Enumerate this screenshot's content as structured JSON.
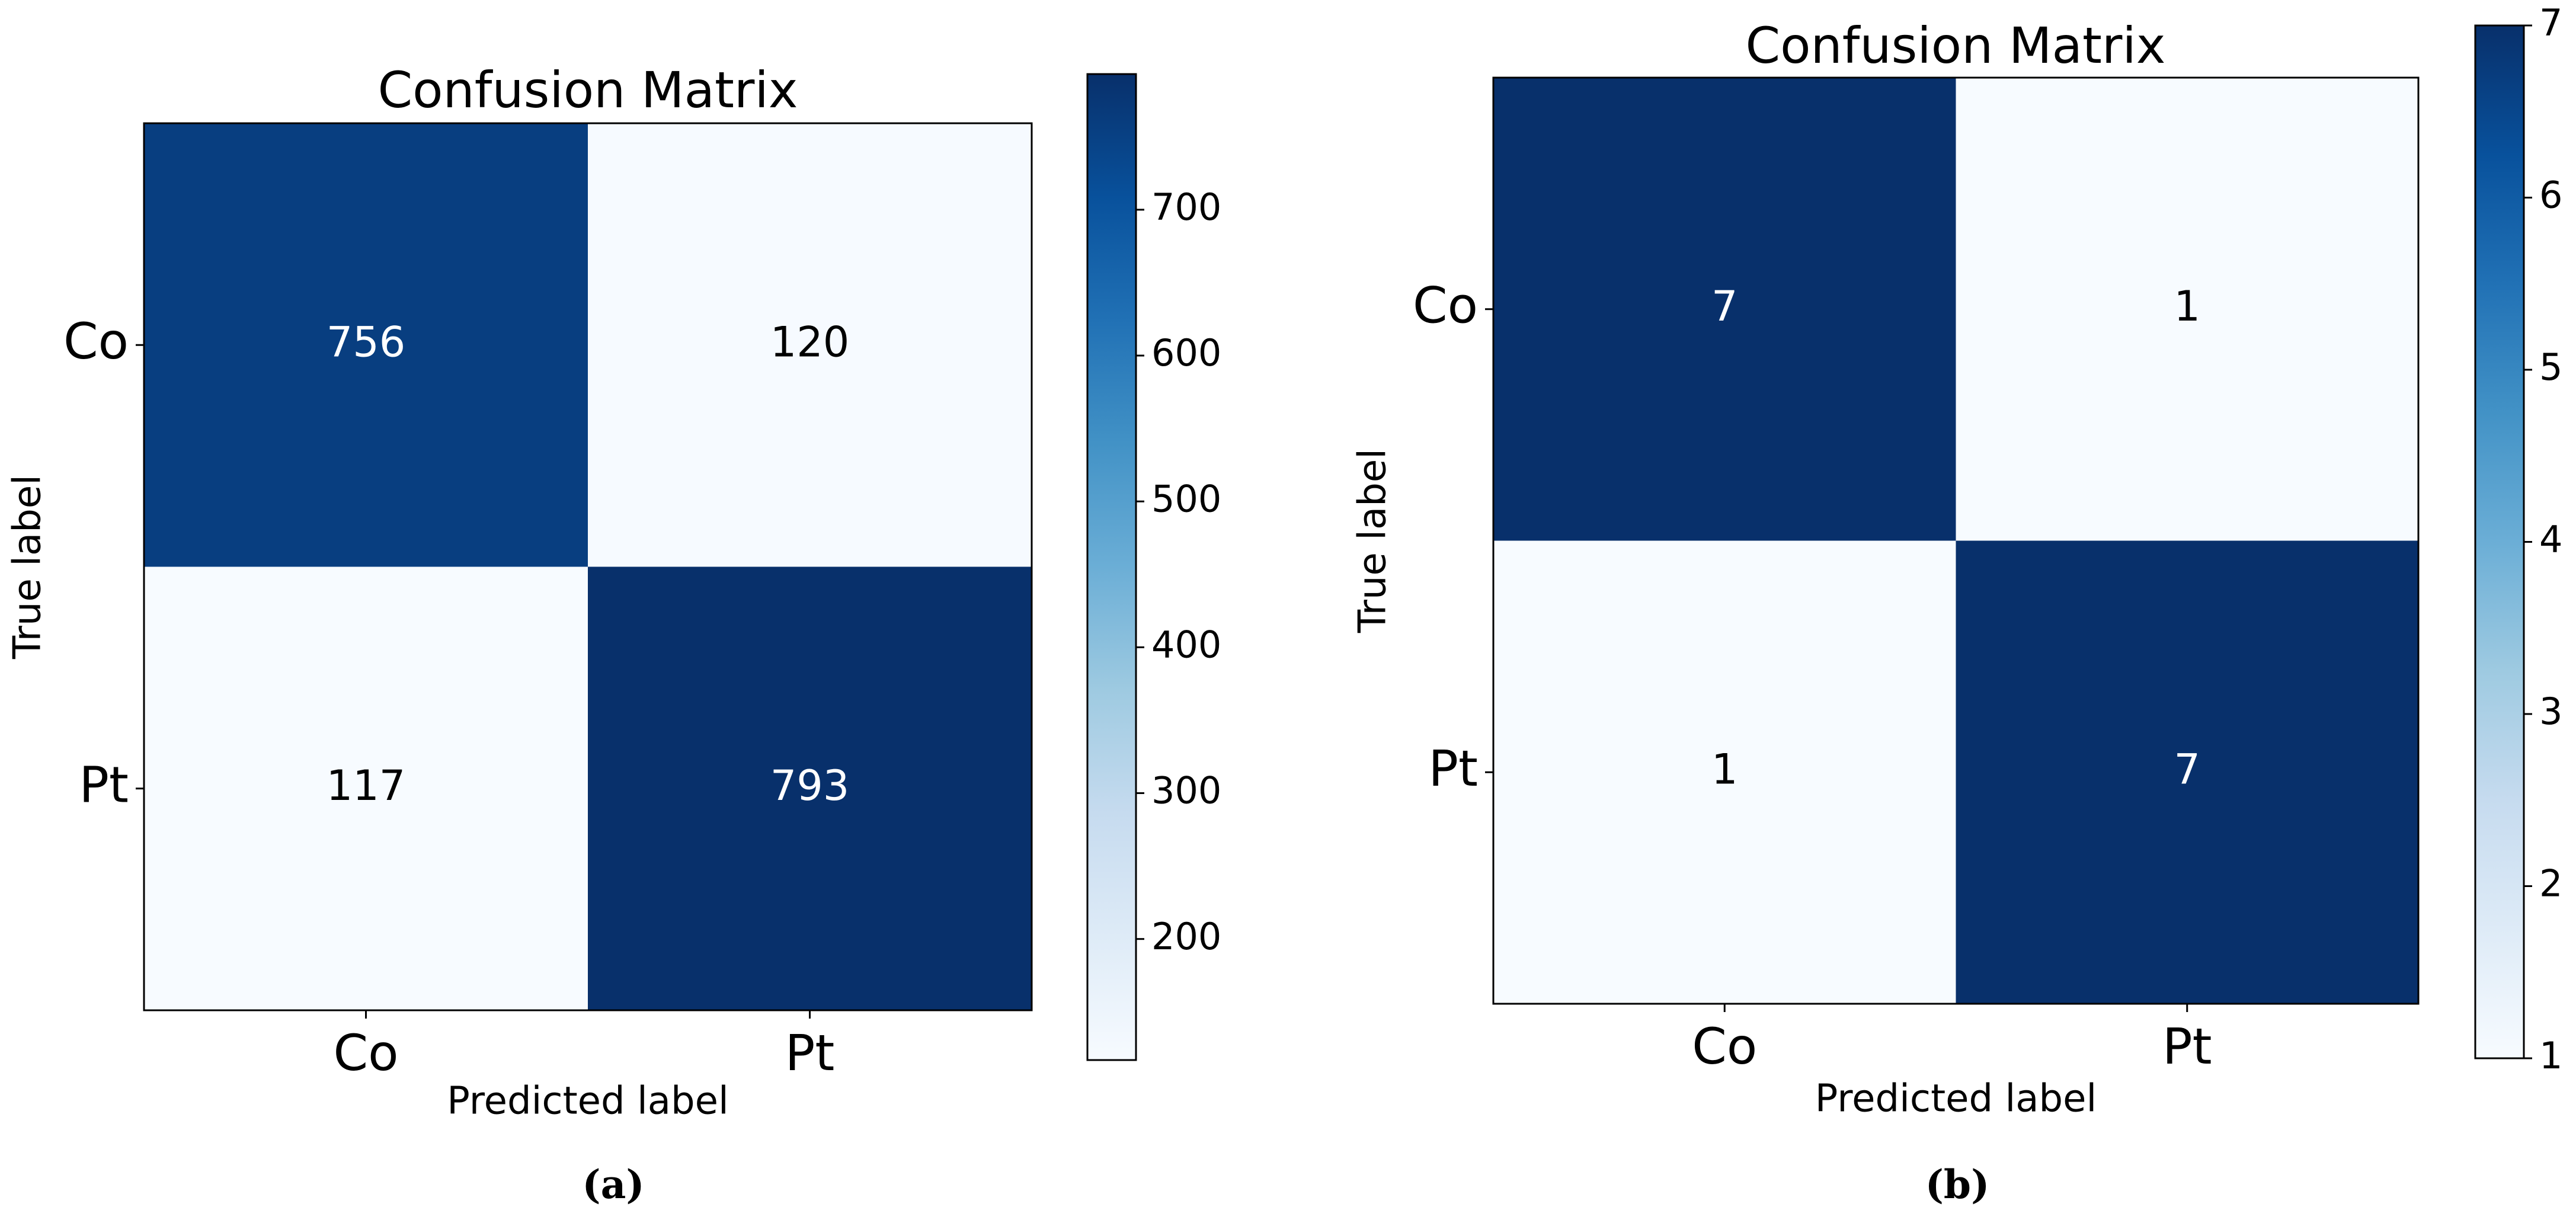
{
  "colors": {
    "cmap": [
      "#f7fbff",
      "#deebf7",
      "#c6dbef",
      "#9ecae1",
      "#6baed6",
      "#4292c6",
      "#2171b5",
      "#08519c",
      "#08306b"
    ],
    "frame": "#000000",
    "text_dark": "#000000",
    "text_light": "#ffffff"
  },
  "chart_data": [
    {
      "type": "heatmap",
      "title": "Confusion Matrix",
      "xlabel": "Predicted label",
      "ylabel": "True label",
      "x_categories": [
        "Co",
        "Pt"
      ],
      "y_categories": [
        "Co",
        "Pt"
      ],
      "matrix": [
        [
          756,
          120
        ],
        [
          117,
          793
        ]
      ],
      "vmin": 117,
      "vmax": 793,
      "colorbar_ticks": [
        200,
        300,
        400,
        500,
        600,
        700
      ],
      "caption": "(a)"
    },
    {
      "type": "heatmap",
      "title": "Confusion Matrix",
      "xlabel": "Predicted label",
      "ylabel": "True label",
      "x_categories": [
        "Co",
        "Pt"
      ],
      "y_categories": [
        "Co",
        "Pt"
      ],
      "matrix": [
        [
          7,
          1
        ],
        [
          1,
          7
        ]
      ],
      "vmin": 1,
      "vmax": 7,
      "colorbar_ticks": [
        1,
        2,
        3,
        4,
        5,
        6,
        7
      ],
      "caption": "(b)"
    }
  ]
}
